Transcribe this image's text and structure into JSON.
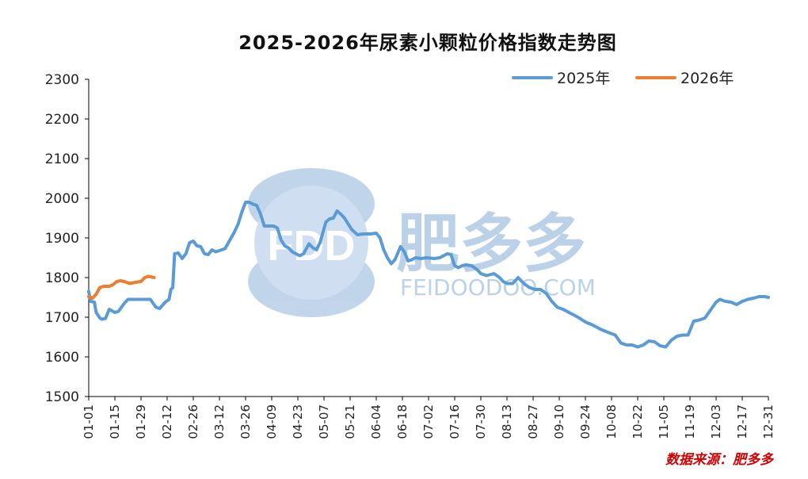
{
  "watermark": {
    "logo_text": "FDD",
    "brand": "肥多多",
    "domain": "FEIDOODOO.COM"
  },
  "source_label": "数据来源：肥多多",
  "colors": {
    "series_2025": "#5b9bd5",
    "series_2026": "#ed7d31",
    "axis": "#000000",
    "source": "#d40000"
  },
  "chart_data": {
    "type": "line",
    "title": "2025-2026年尿素小颗粒价格指数走势图",
    "xlabel": "",
    "ylabel": "",
    "ylim": [
      1500,
      2300
    ],
    "yticks": [
      1500,
      1600,
      1700,
      1800,
      1900,
      2000,
      2100,
      2200,
      2300
    ],
    "xlim": [
      "01-01",
      "12-31"
    ],
    "xticks": [
      "01-01",
      "01-15",
      "01-29",
      "02-12",
      "02-26",
      "03-12",
      "03-26",
      "04-09",
      "04-23",
      "05-07",
      "05-21",
      "06-04",
      "06-18",
      "07-02",
      "07-16",
      "07-30",
      "08-13",
      "08-27",
      "09-10",
      "09-24",
      "10-08",
      "10-22",
      "11-05",
      "11-19",
      "12-03",
      "12-17",
      "12-31"
    ],
    "grid": false,
    "legend_position": "top-right",
    "series": [
      {
        "name": "2025年",
        "points": [
          [
            "01-01",
            1765
          ],
          [
            "01-02",
            1740
          ],
          [
            "01-04",
            1738
          ],
          [
            "01-05",
            1712
          ],
          [
            "01-07",
            1698
          ],
          [
            "01-08",
            1695
          ],
          [
            "01-10",
            1697
          ],
          [
            "01-12",
            1720
          ],
          [
            "01-15",
            1712
          ],
          [
            "01-17",
            1715
          ],
          [
            "01-20",
            1735
          ],
          [
            "01-22",
            1745
          ],
          [
            "01-26",
            1745
          ],
          [
            "01-30",
            1745
          ],
          [
            "02-03",
            1745
          ],
          [
            "02-06",
            1725
          ],
          [
            "02-08",
            1722
          ],
          [
            "02-11",
            1738
          ],
          [
            "02-13",
            1745
          ],
          [
            "02-14",
            1770
          ],
          [
            "02-15",
            1775
          ],
          [
            "02-16",
            1860
          ],
          [
            "02-18",
            1862
          ],
          [
            "02-20",
            1848
          ],
          [
            "02-22",
            1860
          ],
          [
            "02-24",
            1888
          ],
          [
            "02-26",
            1892
          ],
          [
            "02-28",
            1880
          ],
          [
            "03-02",
            1878
          ],
          [
            "03-04",
            1860
          ],
          [
            "03-06",
            1858
          ],
          [
            "03-08",
            1870
          ],
          [
            "03-10",
            1865
          ],
          [
            "03-12",
            1868
          ],
          [
            "03-15",
            1873
          ],
          [
            "03-18",
            1898
          ],
          [
            "03-20",
            1915
          ],
          [
            "03-22",
            1935
          ],
          [
            "03-24",
            1965
          ],
          [
            "03-26",
            1990
          ],
          [
            "03-28",
            1990
          ],
          [
            "03-30",
            1985
          ],
          [
            "04-01",
            1982
          ],
          [
            "04-03",
            1960
          ],
          [
            "04-05",
            1930
          ],
          [
            "04-08",
            1930
          ],
          [
            "04-10",
            1930
          ],
          [
            "04-12",
            1925
          ],
          [
            "04-14",
            1895
          ],
          [
            "04-16",
            1880
          ],
          [
            "04-18",
            1875
          ],
          [
            "04-20",
            1865
          ],
          [
            "04-22",
            1860
          ],
          [
            "04-24",
            1855
          ],
          [
            "04-26",
            1860
          ],
          [
            "04-29",
            1885
          ],
          [
            "05-01",
            1875
          ],
          [
            "05-03",
            1870
          ],
          [
            "05-05",
            1890
          ],
          [
            "05-08",
            1940
          ],
          [
            "05-10",
            1948
          ],
          [
            "05-12",
            1950
          ],
          [
            "05-14",
            1968
          ],
          [
            "05-16",
            1960
          ],
          [
            "05-18",
            1950
          ],
          [
            "05-20",
            1935
          ],
          [
            "05-22",
            1920
          ],
          [
            "05-25",
            1908
          ],
          [
            "05-28",
            1910
          ],
          [
            "06-01",
            1910
          ],
          [
            "06-04",
            1912
          ],
          [
            "06-06",
            1900
          ],
          [
            "06-08",
            1870
          ],
          [
            "06-10",
            1850
          ],
          [
            "06-12",
            1835
          ],
          [
            "06-14",
            1845
          ],
          [
            "06-17",
            1878
          ],
          [
            "06-19",
            1865
          ],
          [
            "06-21",
            1842
          ],
          [
            "06-23",
            1845
          ],
          [
            "06-25",
            1850
          ],
          [
            "06-28",
            1848
          ],
          [
            "07-01",
            1850
          ],
          [
            "07-05",
            1848
          ],
          [
            "07-08",
            1850
          ],
          [
            "07-12",
            1860
          ],
          [
            "07-14",
            1858
          ],
          [
            "07-16",
            1830
          ],
          [
            "07-18",
            1825
          ],
          [
            "07-20",
            1830
          ],
          [
            "07-22",
            1832
          ],
          [
            "07-25",
            1830
          ],
          [
            "07-28",
            1820
          ],
          [
            "07-30",
            1810
          ],
          [
            "08-02",
            1805
          ],
          [
            "08-06",
            1810
          ],
          [
            "08-09",
            1800
          ],
          [
            "08-11",
            1790
          ],
          [
            "08-13",
            1785
          ],
          [
            "08-16",
            1785
          ],
          [
            "08-19",
            1800
          ],
          [
            "08-22",
            1785
          ],
          [
            "08-25",
            1775
          ],
          [
            "08-28",
            1770
          ],
          [
            "08-31",
            1770
          ],
          [
            "09-03",
            1760
          ],
          [
            "09-06",
            1740
          ],
          [
            "09-09",
            1725
          ],
          [
            "09-12",
            1720
          ],
          [
            "09-16",
            1710
          ],
          [
            "09-20",
            1700
          ],
          [
            "09-24",
            1688
          ],
          [
            "09-28",
            1680
          ],
          [
            "10-02",
            1670
          ],
          [
            "10-06",
            1662
          ],
          [
            "10-10",
            1655
          ],
          [
            "10-13",
            1635
          ],
          [
            "10-16",
            1630
          ],
          [
            "10-19",
            1630
          ],
          [
            "10-22",
            1625
          ],
          [
            "10-25",
            1630
          ],
          [
            "10-28",
            1640
          ],
          [
            "10-31",
            1638
          ],
          [
            "11-03",
            1628
          ],
          [
            "11-06",
            1625
          ],
          [
            "11-09",
            1642
          ],
          [
            "11-12",
            1652
          ],
          [
            "11-15",
            1655
          ],
          [
            "11-18",
            1655
          ],
          [
            "11-21",
            1690
          ],
          [
            "11-24",
            1693
          ],
          [
            "11-27",
            1698
          ],
          [
            "11-30",
            1718
          ],
          [
            "12-03",
            1738
          ],
          [
            "12-05",
            1745
          ],
          [
            "12-08",
            1740
          ],
          [
            "12-11",
            1738
          ],
          [
            "12-14",
            1732
          ],
          [
            "12-17",
            1740
          ],
          [
            "12-20",
            1745
          ],
          [
            "12-23",
            1748
          ],
          [
            "12-26",
            1752
          ],
          [
            "12-29",
            1752
          ],
          [
            "12-31",
            1750
          ]
        ]
      },
      {
        "name": "2026年",
        "points": [
          [
            "01-01",
            1752
          ],
          [
            "01-03",
            1748
          ],
          [
            "01-05",
            1758
          ],
          [
            "01-07",
            1775
          ],
          [
            "01-09",
            1778
          ],
          [
            "01-12",
            1778
          ],
          [
            "01-14",
            1782
          ],
          [
            "01-16",
            1790
          ],
          [
            "01-18",
            1792
          ],
          [
            "01-20",
            1790
          ],
          [
            "01-23",
            1785
          ],
          [
            "01-26",
            1788
          ],
          [
            "01-29",
            1790
          ],
          [
            "01-31",
            1800
          ],
          [
            "02-02",
            1803
          ],
          [
            "02-05",
            1800
          ]
        ]
      }
    ]
  }
}
